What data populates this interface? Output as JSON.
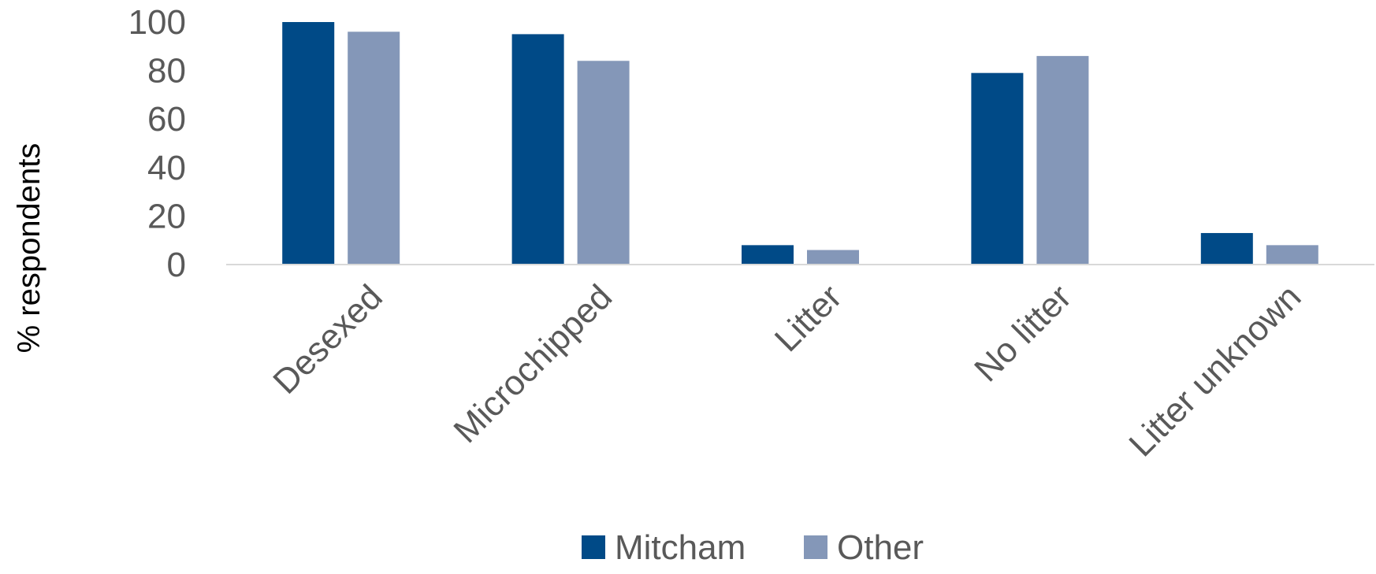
{
  "chart_data": {
    "type": "bar",
    "title": "",
    "xlabel": "",
    "ylabel": "% respondents",
    "ylim": [
      0,
      100
    ],
    "yticks": [
      0,
      20,
      40,
      60,
      80,
      100
    ],
    "categories": [
      "Desexed",
      "Microchipped",
      "Litter",
      "No litter",
      "Litter unknown"
    ],
    "series": [
      {
        "name": "Mitcham",
        "color": "#004A87",
        "values": [
          100,
          95,
          8,
          79,
          13
        ]
      },
      {
        "name": "Other",
        "color": "#8497B8",
        "values": [
          96,
          84,
          6,
          86,
          8
        ]
      }
    ],
    "grid": false,
    "legend_position": "bottom",
    "axis_color": "#D9D9D9"
  }
}
